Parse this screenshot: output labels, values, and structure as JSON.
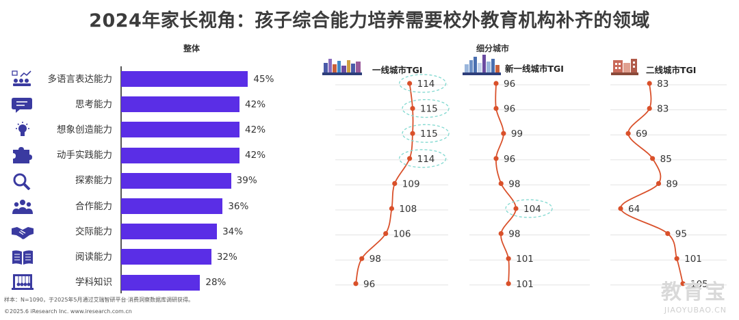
{
  "title": "2024年家长视角：孩子综合能力培养需要校外教育机构补齐的领域",
  "overall_heading": "整体",
  "segment_heading": "细分城市",
  "footer": {
    "note": "样本：N=1090，于2025年5月通过艾瑞智研平台·消费洞察数据库调研获得。",
    "copyright": "©2025.6 iResearch Inc. www.iresearch.com.cn"
  },
  "watermark": {
    "main": "教育宝",
    "sub": "JIAOYUBAO.CN"
  },
  "icons": [
    "audience-icon",
    "speech-bubble-icon",
    "lightbulb-icon",
    "puzzle-icon",
    "magnifier-icon",
    "team-icon",
    "handshake-icon",
    "open-book-icon",
    "newtons-cradle-icon"
  ],
  "chart_data": [
    {
      "type": "bar",
      "orientation": "horizontal",
      "title": "整体",
      "categories": [
        "多语言表达能力",
        "思考能力",
        "想象创造能力",
        "动手实践能力",
        "探索能力",
        "合作能力",
        "交际能力",
        "阅读能力",
        "学科知识"
      ],
      "values": [
        45,
        42,
        42,
        42,
        39,
        36,
        34,
        32,
        28
      ],
      "value_labels": [
        "45%",
        "42%",
        "42%",
        "42%",
        "39%",
        "36%",
        "34%",
        "32%",
        "28%"
      ],
      "unit": "%",
      "color": "#5a2ee6"
    },
    {
      "type": "line",
      "title": "细分城市",
      "categories": [
        "多语言表达能力",
        "思考能力",
        "想象创造能力",
        "动手实践能力",
        "探索能力",
        "合作能力",
        "交际能力",
        "阅读能力",
        "学科知识"
      ],
      "color": "#d9502a",
      "highlight_color": "#7fd8cf",
      "series": [
        {
          "name": "一线城市TGI",
          "values": [
            114,
            115,
            115,
            114,
            109,
            108,
            106,
            98,
            96
          ],
          "highlighted": [
            0,
            1,
            2,
            3
          ]
        },
        {
          "name": "新一线城市TGI",
          "values": [
            96,
            96,
            99,
            96,
            98,
            104,
            98,
            101,
            101
          ],
          "highlighted": [
            5
          ]
        },
        {
          "name": "二线城市TGI",
          "values": [
            83,
            83,
            69,
            85,
            89,
            64,
            95,
            101,
            105
          ],
          "highlighted": []
        }
      ]
    }
  ]
}
